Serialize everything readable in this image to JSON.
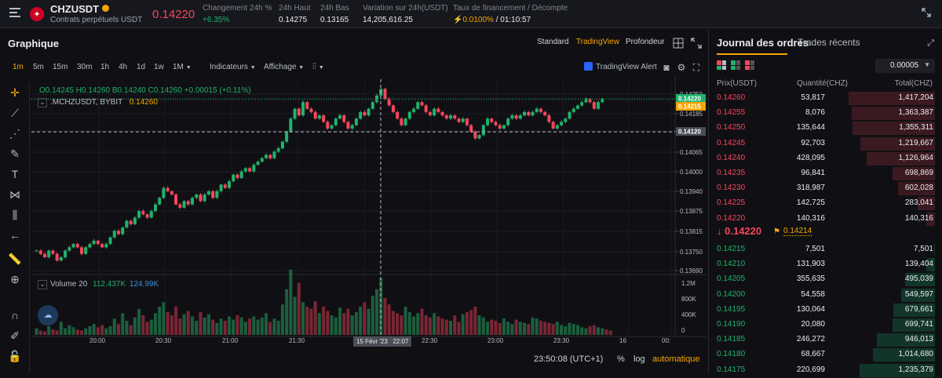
{
  "header": {
    "symbol": "CHZUSDT",
    "subtitle": "Contrats perpétuels USDT",
    "last_price": "0.14220",
    "stats": [
      {
        "label": "Changement 24h %",
        "value": "+6.35%",
        "color": "#20b26c"
      },
      {
        "label": "24h Haut",
        "value": "0.14275",
        "color": "#eaecef"
      },
      {
        "label": "24h Bas",
        "value": "0.13165",
        "color": "#eaecef"
      },
      {
        "label": "Variation sur 24h(USDT)",
        "value": "14,205,616.25",
        "color": "#eaecef"
      },
      {
        "label": "Taux de financement / Décompte",
        "value": "0.0100%",
        "value2": " / 01:10:57",
        "color": "#f7a600"
      }
    ]
  },
  "chart_panel": {
    "title": "Graphique",
    "view_tabs": [
      "Standard",
      "TradingView",
      "Profondeur"
    ],
    "active_view": "TradingView",
    "timeframes": [
      "1m",
      "5m",
      "15m",
      "30m",
      "1h",
      "4h",
      "1d",
      "1w",
      "1M"
    ],
    "active_timeframe": "1m",
    "indicators_label": "Indicateurs",
    "display_label": "Affichage",
    "tv_alert_label": "TradingView Alert",
    "ohlc_text": {
      "o": "O0.14245",
      "h": "H0.14260",
      "b": "B0.14240",
      "c": "C0.14260",
      "chg": "+0.00015 (+0.11%)"
    },
    "series_label": ".MCHZUSDT, BYBIT",
    "series_value": "0.14260",
    "volume_label": "Volume 20",
    "volume_v1": "112.437K",
    "volume_v2": "124.99K",
    "crosshair_time": "15 Févr '23   22:07",
    "clock": "23:50:08 (UTC+1)",
    "bottom_controls": [
      "%",
      "log",
      "automatique"
    ],
    "price_tags": [
      {
        "value": "0.14220",
        "bg": "#20b26c"
      },
      {
        "value": "0.14215",
        "bg": "#f7a600"
      },
      {
        "value": "0.14120",
        "bg": "#4a4d55"
      }
    ]
  },
  "chart_data": {
    "type": "candlestick",
    "x_ticks": [
      "20:00",
      "20:30",
      "21:00",
      "21:30",
      "22:00",
      "22:30",
      "23:00",
      "23:30",
      "16",
      "00:"
    ],
    "y_ticks": [
      "0.14250",
      "0.14185",
      "0.14125",
      "0.14065",
      "0.14000",
      "0.13940",
      "0.13875",
      "0.13815",
      "0.13750",
      "0.13690"
    ],
    "ylim": [
      0.1369,
      0.1427
    ],
    "volume_ticks": [
      "1.2M",
      "800K",
      "400K",
      "0"
    ],
    "volume_ylim": [
      0,
      1300000
    ],
    "close_path": [
      0.1376,
      0.1375,
      0.1374,
      0.1376,
      0.1375,
      0.1373,
      0.1374,
      0.1376,
      0.1377,
      0.1378,
      0.1377,
      0.1375,
      0.1377,
      0.1378,
      0.1379,
      0.1378,
      0.1377,
      0.1378,
      0.138,
      0.1382,
      0.1381,
      0.1383,
      0.1385,
      0.1384,
      0.1386,
      0.1388,
      0.1387,
      0.1386,
      0.1388,
      0.139,
      0.1392,
      0.1395,
      0.1394,
      0.1393,
      0.139,
      0.1389,
      0.1391,
      0.139,
      0.1392,
      0.1393,
      0.1391,
      0.1393,
      0.1394,
      0.1392,
      0.1394,
      0.1396,
      0.1395,
      0.1397,
      0.1399,
      0.1398,
      0.14,
      0.1401,
      0.14,
      0.1402,
      0.1403,
      0.1404,
      0.1405,
      0.1404,
      0.1406,
      0.1407,
      0.1409,
      0.1412,
      0.1416,
      0.1419,
      0.1417,
      0.1421,
      0.1419,
      0.1418,
      0.1416,
      0.1417,
      0.1415,
      0.1413,
      0.1414,
      0.1416,
      0.1417,
      0.1415,
      0.1413,
      0.1414,
      0.1416,
      0.1418,
      0.1417,
      0.1419,
      0.1421,
      0.1423,
      0.1425,
      0.1422,
      0.142,
      0.1418,
      0.1416,
      0.1414,
      0.1416,
      0.1418,
      0.1419,
      0.1421,
      0.142,
      0.1418,
      0.1417,
      0.1419,
      0.1418,
      0.1417,
      0.1416,
      0.1417,
      0.1416,
      0.1415,
      0.1416,
      0.1414,
      0.1412,
      0.141,
      0.1411,
      0.1414,
      0.1416,
      0.1415,
      0.1414,
      0.1413,
      0.1414,
      0.1416,
      0.1417,
      0.1416,
      0.1417,
      0.1418,
      0.1417,
      0.1418,
      0.1419,
      0.1418,
      0.1417,
      0.1415,
      0.1413,
      0.1414,
      0.1415,
      0.1416,
      0.1418,
      0.1419,
      0.142,
      0.1421,
      0.1422,
      0.1421,
      0.1419,
      0.1421,
      0.1422
    ],
    "volume_path": [
      60,
      40,
      30,
      80,
      50,
      40,
      120,
      60,
      90,
      70,
      50,
      40,
      60,
      80,
      100,
      70,
      90,
      60,
      80,
      150,
      100,
      200,
      130,
      90,
      160,
      240,
      180,
      120,
      140,
      200,
      260,
      300,
      210,
      180,
      260,
      150,
      190,
      220,
      170,
      130,
      210,
      160,
      190,
      140,
      110,
      150,
      130,
      170,
      140,
      180,
      160,
      120,
      150,
      170,
      140,
      160,
      200,
      120,
      150,
      130,
      280,
      420,
      600,
      350,
      480,
      300,
      260,
      240,
      310,
      200,
      260,
      220,
      180,
      160,
      250,
      200,
      240,
      180,
      210,
      260,
      300,
      240,
      360,
      420,
      520,
      340,
      280,
      220,
      200,
      180,
      260,
      210,
      170,
      200,
      240,
      180,
      160,
      200,
      170,
      150,
      140,
      130,
      180,
      120,
      190,
      210,
      230,
      260,
      180,
      160,
      120,
      140,
      130,
      110,
      150,
      120,
      100,
      140,
      120,
      110,
      100,
      160,
      150,
      130,
      120,
      110,
      100,
      120,
      90,
      80,
      110,
      100,
      90,
      70,
      60,
      80,
      90,
      70,
      60,
      50,
      40
    ]
  },
  "orderbook": {
    "tab_active": "Journal des ordres",
    "tab_other": "Trades récents",
    "step": "0.00005",
    "col_price": "Prix(USDT)",
    "col_qty": "Quantité(CHZ)",
    "col_total": "Total(CHZ)",
    "asks": [
      {
        "price": "0.14260",
        "qty": "53,817",
        "total": "1,417,204",
        "depth": 1.0
      },
      {
        "price": "0.14255",
        "qty": "8,076",
        "total": "1,363,387",
        "depth": 0.96
      },
      {
        "price": "0.14250",
        "qty": "135,644",
        "total": "1,355,311",
        "depth": 0.955
      },
      {
        "price": "0.14245",
        "qty": "92,703",
        "total": "1,219,667",
        "depth": 0.86
      },
      {
        "price": "0.14240",
        "qty": "428,095",
        "total": "1,126,964",
        "depth": 0.795
      },
      {
        "price": "0.14235",
        "qty": "96,841",
        "total": "698,869",
        "depth": 0.49
      },
      {
        "price": "0.14230",
        "qty": "318,987",
        "total": "602,028",
        "depth": 0.425
      },
      {
        "price": "0.14225",
        "qty": "142,725",
        "total": "283,041",
        "depth": 0.2
      },
      {
        "price": "0.14220",
        "qty": "140,316",
        "total": "140,316",
        "depth": 0.1
      }
    ],
    "mid_price": "0.14220",
    "mark_price": "0.14214",
    "bids": [
      {
        "price": "0.14215",
        "qty": "7,501",
        "total": "7,501",
        "depth": 0.005
      },
      {
        "price": "0.14210",
        "qty": "131,903",
        "total": "139,404",
        "depth": 0.098
      },
      {
        "price": "0.14205",
        "qty": "355,635",
        "total": "495,039",
        "depth": 0.35
      },
      {
        "price": "0.14200",
        "qty": "54,558",
        "total": "549,597",
        "depth": 0.39
      },
      {
        "price": "0.14195",
        "qty": "130,064",
        "total": "679,661",
        "depth": 0.48
      },
      {
        "price": "0.14190",
        "qty": "20,080",
        "total": "699,741",
        "depth": 0.495
      },
      {
        "price": "0.14185",
        "qty": "246,272",
        "total": "946,013",
        "depth": 0.67
      },
      {
        "price": "0.14180",
        "qty": "68,667",
        "total": "1,014,680",
        "depth": 0.72
      },
      {
        "price": "0.14175",
        "qty": "220,699",
        "total": "1,235,379",
        "depth": 0.87
      }
    ],
    "colors": {
      "ask": "#f6465d",
      "bid": "#20b26c",
      "ask_bar": "#3a1a20",
      "bid_bar": "#12352a"
    }
  }
}
